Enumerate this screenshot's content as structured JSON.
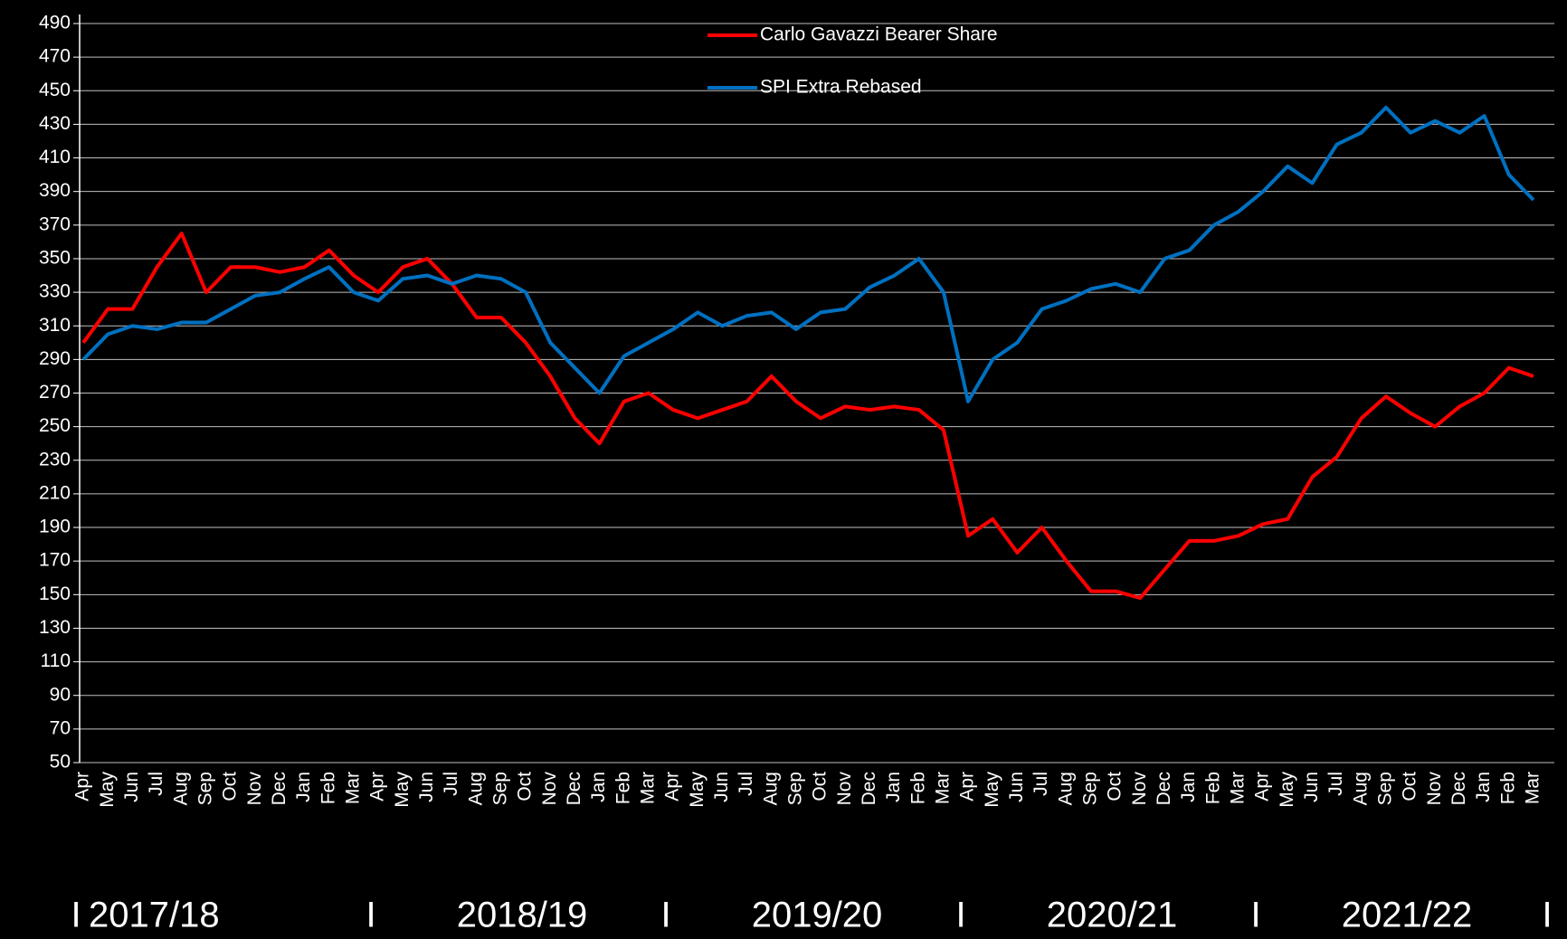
{
  "chart_data": {
    "type": "line",
    "categories": [
      "Apr",
      "May",
      "Jun",
      "Jul",
      "Aug",
      "Sep",
      "Oct",
      "Nov",
      "Dec",
      "Jan",
      "Feb",
      "Mar",
      "Apr",
      "May",
      "Jun",
      "Jul",
      "Aug",
      "Sep",
      "Oct",
      "Nov",
      "Dec",
      "Jan",
      "Feb",
      "Mar",
      "Apr",
      "May",
      "Jun",
      "Jul",
      "Aug",
      "Sep",
      "Oct",
      "Nov",
      "Dec",
      "Jan",
      "Feb",
      "Mar",
      "Apr",
      "May",
      "Jun",
      "Jul",
      "Aug",
      "Sep",
      "Oct",
      "Nov",
      "Dec",
      "Jan",
      "Feb",
      "Mar",
      "Apr",
      "May",
      "Jun",
      "Jul",
      "Aug",
      "Sep",
      "Oct",
      "Nov",
      "Dec",
      "Jan",
      "Feb",
      "Mar"
    ],
    "series": [
      {
        "name": "Carlo Gavazzi Bearer Share",
        "color": "#ff0000",
        "values": [
          300,
          320,
          320,
          345,
          365,
          330,
          345,
          345,
          342,
          345,
          355,
          340,
          330,
          345,
          350,
          335,
          315,
          315,
          300,
          280,
          255,
          240,
          265,
          270,
          260,
          255,
          260,
          265,
          280,
          265,
          255,
          262,
          260,
          262,
          260,
          248,
          185,
          195,
          175,
          190,
          170,
          152,
          152,
          148,
          165,
          182,
          182,
          185,
          192,
          195,
          220,
          232,
          255,
          268,
          258,
          250,
          262,
          270,
          285,
          280
        ]
      },
      {
        "name": "SPI Extra Rebased",
        "color": "#0070c0",
        "values": [
          290,
          305,
          310,
          308,
          312,
          312,
          320,
          328,
          330,
          338,
          345,
          330,
          325,
          338,
          340,
          335,
          340,
          338,
          330,
          300,
          285,
          270,
          292,
          300,
          308,
          318,
          310,
          316,
          318,
          308,
          318,
          320,
          333,
          340,
          350,
          330,
          265,
          290,
          300,
          320,
          325,
          332,
          335,
          330,
          350,
          355,
          370,
          378,
          390,
          405,
          395,
          418,
          425,
          440,
          425,
          432,
          425,
          435,
          400,
          385
        ]
      }
    ],
    "ylim": [
      50,
      490
    ],
    "yticks": [
      50,
      70,
      90,
      110,
      130,
      150,
      170,
      190,
      210,
      230,
      250,
      270,
      290,
      310,
      330,
      350,
      370,
      390,
      410,
      430,
      450,
      470,
      490
    ],
    "grid": true,
    "legend": "top",
    "periods": [
      "2017/18",
      "2018/19",
      "2019/20",
      "2020/21",
      "2021/22"
    ],
    "period_separator": "I"
  }
}
